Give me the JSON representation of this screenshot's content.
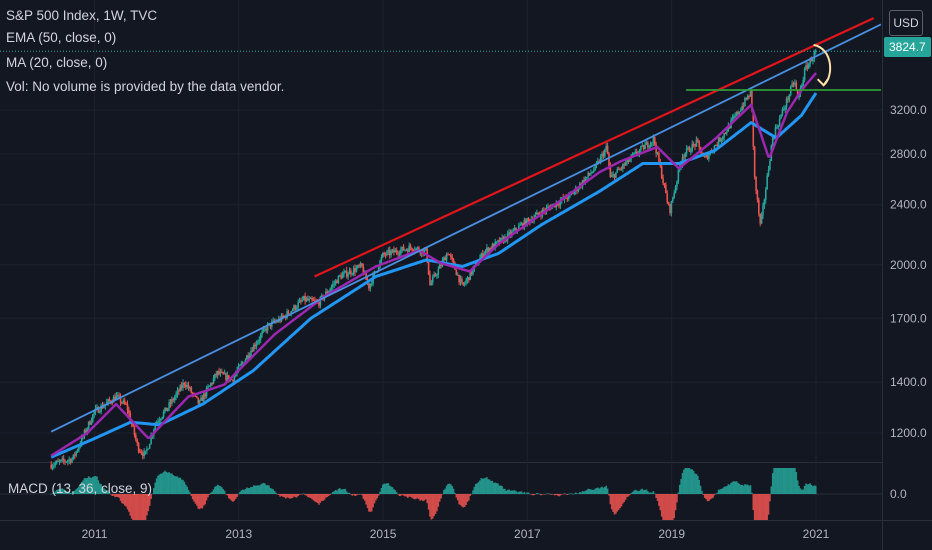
{
  "header": {
    "title": "S&P 500 Index, 1W, TVC",
    "indicators": [
      "EMA (50, close, 0)",
      "MA (20, close, 0)",
      "Vol: No volume is provided by the data vendor."
    ],
    "currency_button": "USD",
    "last_price": "3824.7",
    "macd_label": "MACD (13, 36, close, 9)"
  },
  "colors": {
    "background": "#131722",
    "up": "#26a69a",
    "down": "#ef5350",
    "ema": "#2196f3",
    "ma": "#9c27b0",
    "trend_red": "#e0151b",
    "trend_blue": "#4a90e2",
    "support_green": "#2e9e38",
    "arrow": "#ffe0a6"
  },
  "chart_data": {
    "type": "candlestick",
    "price_scale": "log",
    "y_ticks": [
      "1200.0",
      "1400.0",
      "1700.0",
      "2000.0",
      "2400.0",
      "2800.0",
      "3200.0"
    ],
    "x_ticks": [
      "2011",
      "2013",
      "2015",
      "2017",
      "2019",
      "2021"
    ],
    "macd_tick": "0.0",
    "price_path": [
      [
        2010.4,
        1090
      ],
      [
        2010.7,
        1110
      ],
      [
        2011.0,
        1280
      ],
      [
        2011.3,
        1340
      ],
      [
        2011.45,
        1300
      ],
      [
        2011.6,
        1150
      ],
      [
        2011.7,
        1120
      ],
      [
        2011.85,
        1240
      ],
      [
        2012.0,
        1290
      ],
      [
        2012.25,
        1400
      ],
      [
        2012.45,
        1310
      ],
      [
        2012.7,
        1440
      ],
      [
        2012.9,
        1410
      ],
      [
        2013.2,
        1560
      ],
      [
        2013.4,
        1660
      ],
      [
        2013.6,
        1700
      ],
      [
        2013.9,
        1800
      ],
      [
        2014.1,
        1780
      ],
      [
        2014.4,
        1930
      ],
      [
        2014.7,
        1990
      ],
      [
        2014.8,
        1870
      ],
      [
        2015.0,
        2060
      ],
      [
        2015.4,
        2110
      ],
      [
        2015.6,
        2080
      ],
      [
        2015.65,
        1880
      ],
      [
        2015.9,
        2080
      ],
      [
        2016.1,
        1870
      ],
      [
        2016.4,
        2080
      ],
      [
        2016.7,
        2170
      ],
      [
        2016.9,
        2250
      ],
      [
        2017.3,
        2380
      ],
      [
        2017.6,
        2470
      ],
      [
        2017.95,
        2690
      ],
      [
        2018.1,
        2860
      ],
      [
        2018.15,
        2600
      ],
      [
        2018.5,
        2800
      ],
      [
        2018.75,
        2930
      ],
      [
        2018.85,
        2660
      ],
      [
        2018.97,
        2350
      ],
      [
        2019.15,
        2790
      ],
      [
        2019.35,
        2900
      ],
      [
        2019.45,
        2750
      ],
      [
        2019.75,
        3000
      ],
      [
        2020.1,
        3380
      ],
      [
        2020.15,
        2600
      ],
      [
        2020.23,
        2240
      ],
      [
        2020.4,
        2950
      ],
      [
        2020.6,
        3300
      ],
      [
        2020.7,
        3500
      ],
      [
        2020.75,
        3300
      ],
      [
        2020.85,
        3620
      ],
      [
        2021.0,
        3824.7
      ]
    ],
    "ema50_path": [
      [
        2010.4,
        1115
      ],
      [
        2011.0,
        1180
      ],
      [
        2011.5,
        1240
      ],
      [
        2011.9,
        1230
      ],
      [
        2012.5,
        1310
      ],
      [
        2013.2,
        1450
      ],
      [
        2014.0,
        1700
      ],
      [
        2014.9,
        1930
      ],
      [
        2015.6,
        2030
      ],
      [
        2016.1,
        1990
      ],
      [
        2016.6,
        2070
      ],
      [
        2017.2,
        2260
      ],
      [
        2018.0,
        2500
      ],
      [
        2018.6,
        2720
      ],
      [
        2019.1,
        2720
      ],
      [
        2019.6,
        2830
      ],
      [
        2020.1,
        3080
      ],
      [
        2020.45,
        2940
      ],
      [
        2020.8,
        3150
      ],
      [
        2021.0,
        3370
      ]
    ],
    "ma20_path": [
      [
        2010.4,
        1120
      ],
      [
        2010.9,
        1200
      ],
      [
        2011.3,
        1310
      ],
      [
        2011.75,
        1180
      ],
      [
        2012.3,
        1340
      ],
      [
        2012.8,
        1390
      ],
      [
        2013.5,
        1620
      ],
      [
        2014.2,
        1820
      ],
      [
        2014.9,
        1990
      ],
      [
        2015.5,
        2090
      ],
      [
        2015.8,
        2010
      ],
      [
        2016.2,
        1960
      ],
      [
        2016.6,
        2130
      ],
      [
        2017.3,
        2370
      ],
      [
        2018.0,
        2650
      ],
      [
        2018.3,
        2740
      ],
      [
        2018.8,
        2860
      ],
      [
        2019.1,
        2680
      ],
      [
        2019.6,
        2930
      ],
      [
        2020.1,
        3250
      ],
      [
        2020.35,
        2760
      ],
      [
        2020.6,
        3180
      ],
      [
        2020.8,
        3400
      ],
      [
        2021.0,
        3580
      ]
    ],
    "trend_red": [
      [
        2014.05,
        1930
      ],
      [
        2021.8,
        4230
      ]
    ],
    "trend_blue": [
      [
        2010.4,
        1205
      ],
      [
        2021.9,
        4150
      ]
    ],
    "support_green": {
      "from": 2019.2,
      "to": 2021.9,
      "value": 3400
    },
    "macd_histogram_note": "oscillator pane with green/red histogram bars"
  }
}
